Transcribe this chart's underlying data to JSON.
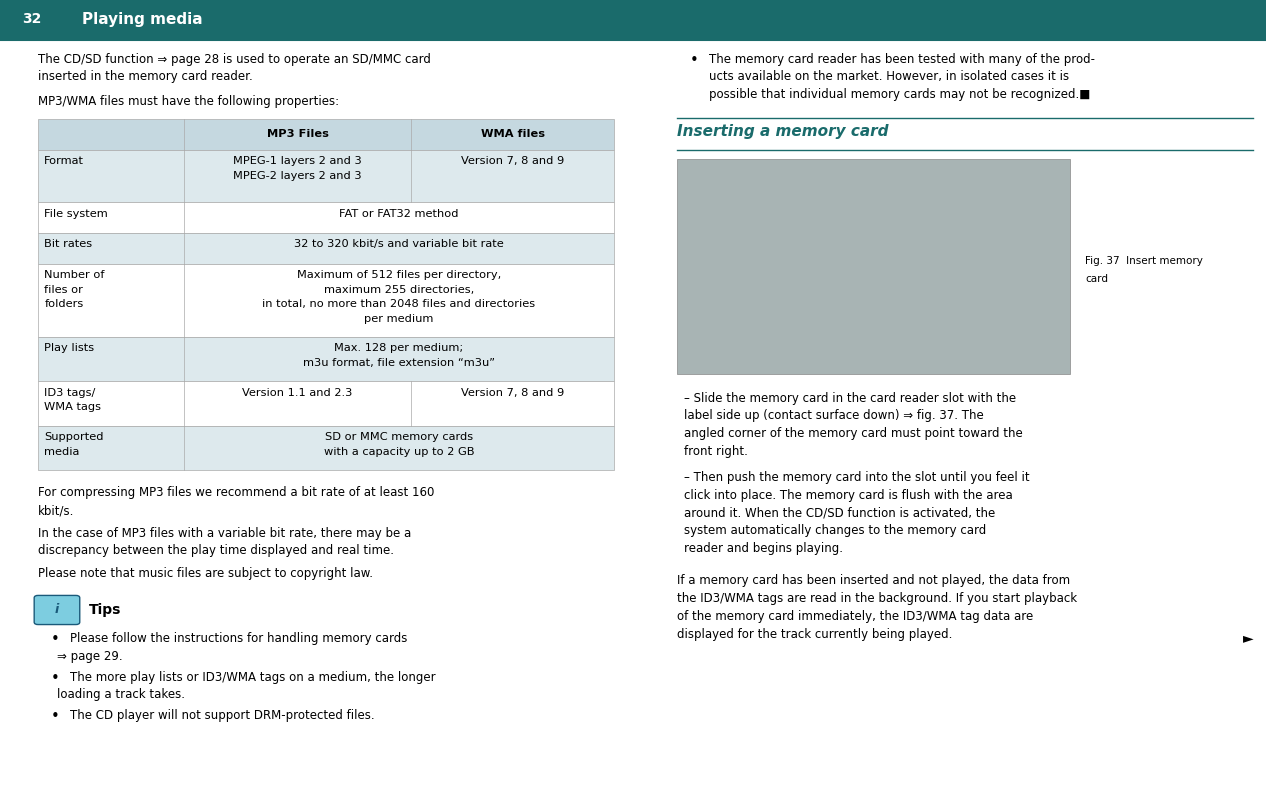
{
  "page_bg": "#ffffff",
  "header_bg": "#1a6b6b",
  "header_text_color": "#ffffff",
  "header_number": "32",
  "header_title": "Playing media",
  "header_line_color": "#1a6b6b",
  "body_intro": "The CD/SD function ⇒ page 28 is used to operate an SD/MMC card\ninserted in the memory card reader.",
  "body_mp3_intro": "MP3/WMA files must have the following properties:",
  "table_header_bg": "#c5d8e0",
  "table_row_alt_bg": "#dde9ed",
  "table_row_white_bg": "#ffffff",
  "table_col1_label": "MP3 Files",
  "table_col2_label": "WMA files",
  "table_rows": [
    {
      "label": "Format",
      "col1": "MPEG-1 layers 2 and 3\nMPEG-2 layers 2 and 3",
      "col2": "Version 7, 8 and 9",
      "bg": "#dde9ed",
      "span": false
    },
    {
      "label": "File system",
      "col1": "FAT or FAT32 method",
      "col2": "",
      "bg": "#ffffff",
      "span": true
    },
    {
      "label": "Bit rates",
      "col1": "32 to 320 kbit/s and variable bit rate",
      "col2": "",
      "bg": "#dde9ed",
      "span": true
    },
    {
      "label": "Number of\nfiles or\nfolders",
      "col1": "Maximum of 512 files per directory,\nmaximum 255 directories,\nin total, no more than 2048 files and directories\nper medium",
      "col2": "",
      "bg": "#ffffff",
      "span": true
    },
    {
      "label": "Play lists",
      "col1": "Max. 128 per medium;\nm3u format, file extension “m3u”",
      "col2": "",
      "bg": "#dde9ed",
      "span": true
    },
    {
      "label": "ID3 tags/\nWMA tags",
      "col1": "Version 1.1 and 2.3",
      "col2": "Version 7, 8 and 9",
      "bg": "#ffffff",
      "span": false
    },
    {
      "label": "Supported\nmedia",
      "col1": "SD or MMC memory cards\nwith a capacity up to 2 GB",
      "col2": "",
      "bg": "#dde9ed",
      "span": true
    }
  ],
  "body_after_table": [
    "For compressing MP3 files we recommend a bit rate of at least 160\nkbit/s.",
    "In the case of MP3 files with a variable bit rate, there may be a\ndiscrepancy between the play time displayed and real time.",
    "Please note that music files are subject to copyright law."
  ],
  "tips_icon_bg": "#7dcde0",
  "tips_icon_color": "#1a5a7a",
  "tips_title": "Tips",
  "tips_bullets": [
    "Please follow the instructions for handling memory cards\n⇒ page 29.",
    "The more play lists or ID3/WMA tags on a medium, the longer\nloading a track takes.",
    "The CD player will not support DRM-protected files.",
    "The memory card reader has been tested with many of the prod-\nucts available on the market. However, in isolated cases it is\npossible that individual memory cards may not be recognized.■"
  ],
  "right_section_title": "Inserting a memory card",
  "right_section_title_color": "#1a6b6b",
  "right_section_line_color": "#1a6b6b",
  "right_bullets": [
    "– Slide the memory card in the card reader slot with the\nlabel side up (contact surface down) ⇒ fig. 37. The\nangled corner of the memory card must point toward the\nfront right.",
    "– Then push the memory card into the slot until you feel it\nclick into place. The memory card is flush with the area\naround it. When the CD/SD function is activated, the\nsystem automatically changes to the memory card\nreader and begins playing."
  ],
  "fig_caption": "Fig. 37  Insert memory\ncard",
  "right_bottom_text": "If a memory card has been inserted and not played, the data from\nthe ID3/WMA tags are read in the background. If you start playback\nof the memory card immediately, the ID3/WMA tag data are\ndisplayed for the track currently being played.",
  "arrow_symbol": "►",
  "font_size_body": 8.5,
  "font_size_header": 11,
  "font_size_table": 8.2,
  "font_size_section_title": 11,
  "font_size_tips_title": 10,
  "font_size_page_num": 10
}
